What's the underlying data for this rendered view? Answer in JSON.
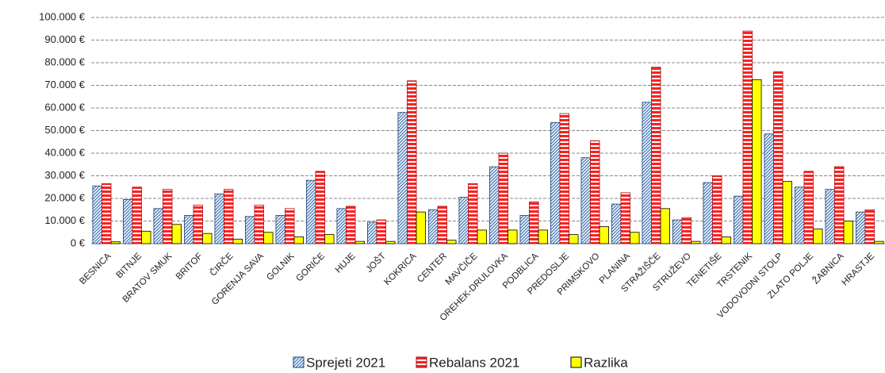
{
  "chart_data": {
    "type": "bar",
    "categories": [
      "BESNICA",
      "BITNJE",
      "BRATOV SMUK",
      "BRITOF",
      "ČIRČE",
      "GORENJA SAVA",
      "GOLNIK",
      "GORIČE",
      "HUJE",
      "JOŠT",
      "KOKRICA",
      "CENTER",
      "MAVČIČE",
      "OREHEK-DRULOVKA",
      "PODBLICA",
      "PREDOSLJE",
      "PRIMSKOVO",
      "PLANINA",
      "STRAŽIŠČE",
      "STRUŽEVO",
      "TENETIŠE",
      "TRSTENIK",
      "VODOVODNI STOLP",
      "ZLATO POLJE",
      "ŽABNICA",
      "HRASTJE"
    ],
    "series": [
      {
        "name": "Sprejeti 2021",
        "color": "#4f81bd",
        "values": [
          25500,
          19500,
          15500,
          12500,
          22000,
          12000,
          12500,
          28000,
          15500,
          9500,
          58000,
          15000,
          20500,
          34000,
          12500,
          53500,
          38000,
          17500,
          62500,
          10500,
          27000,
          21000,
          48500,
          25000,
          24000,
          14000
        ]
      },
      {
        "name": "Rebalans 2021",
        "color": "#ff2020",
        "values": [
          26500,
          25000,
          24000,
          17000,
          24000,
          17000,
          15500,
          32000,
          16500,
          10500,
          72000,
          16500,
          26500,
          40000,
          18500,
          57500,
          45500,
          22500,
          78000,
          11500,
          30000,
          94000,
          76000,
          32000,
          34000,
          15000
        ]
      },
      {
        "name": "Razlika",
        "color": "#ffff00",
        "values": [
          800,
          5500,
          8500,
          4500,
          2000,
          5000,
          3000,
          4000,
          1000,
          1000,
          14000,
          1500,
          6000,
          6000,
          6000,
          4000,
          7500,
          5000,
          15500,
          1000,
          3000,
          72500,
          27500,
          6500,
          10000,
          1000
        ]
      }
    ],
    "ylim": [
      0,
      100000
    ],
    "yticks": [
      {
        "value": 0,
        "label": "0 €"
      },
      {
        "value": 10000,
        "label": "10.000 €"
      },
      {
        "value": 20000,
        "label": "20.000 €"
      },
      {
        "value": 30000,
        "label": "30.000 €"
      },
      {
        "value": 40000,
        "label": "40.000 €"
      },
      {
        "value": 50000,
        "label": "50.000 €"
      },
      {
        "value": 60000,
        "label": "60.000 €"
      },
      {
        "value": 70000,
        "label": "70.000 €"
      },
      {
        "value": 80000,
        "label": "80.000 €"
      },
      {
        "value": 90000,
        "label": "90.000 €"
      },
      {
        "value": 100000,
        "label": "100.000 €"
      }
    ],
    "grid": true,
    "legend": "bottom"
  }
}
